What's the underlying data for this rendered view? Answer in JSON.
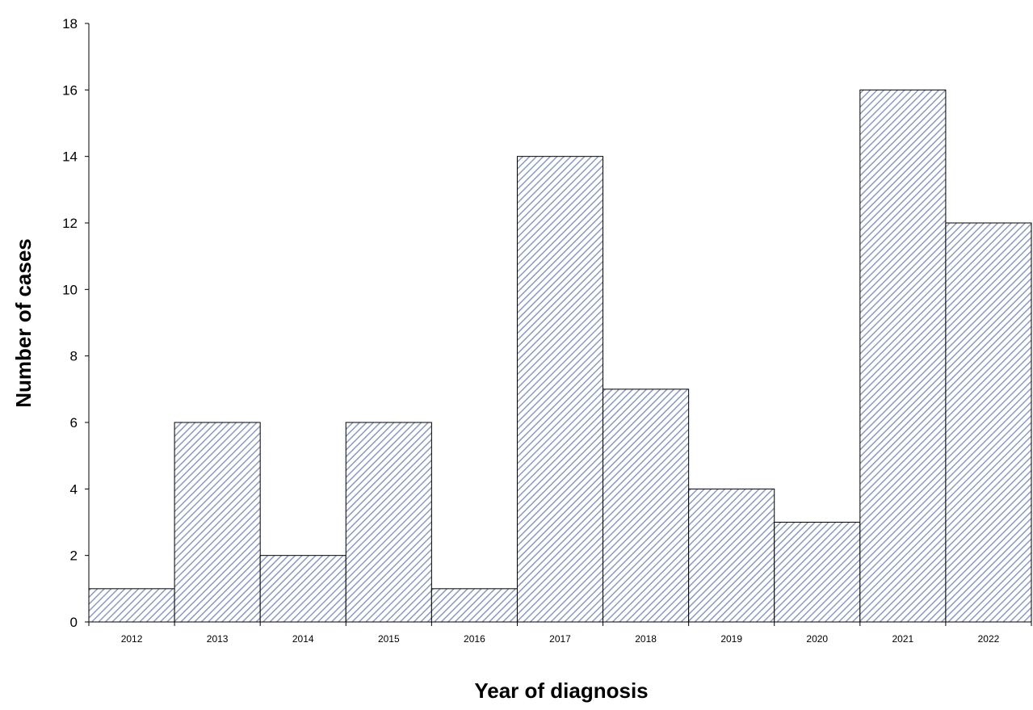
{
  "chart_data": {
    "type": "bar",
    "title": "",
    "xlabel": "Year of diagnosis",
    "ylabel": "Number of cases",
    "categories": [
      "2012",
      "2013",
      "2014",
      "2015",
      "2016",
      "2017",
      "2018",
      "2019",
      "2020",
      "2021",
      "2022"
    ],
    "values": [
      1,
      6,
      2,
      6,
      1,
      14,
      7,
      4,
      3,
      16,
      12
    ],
    "ylim": [
      0,
      18
    ],
    "yticks": [
      "0",
      "2",
      "4",
      "6",
      "8",
      "10",
      "12",
      "14",
      "16",
      "18"
    ],
    "grid": false,
    "legend": "none",
    "bar_fill": "diagonal hatch",
    "colors": {
      "hatch": "#8a9bbf",
      "background": "#ffffff",
      "outline": "#000000"
    }
  }
}
